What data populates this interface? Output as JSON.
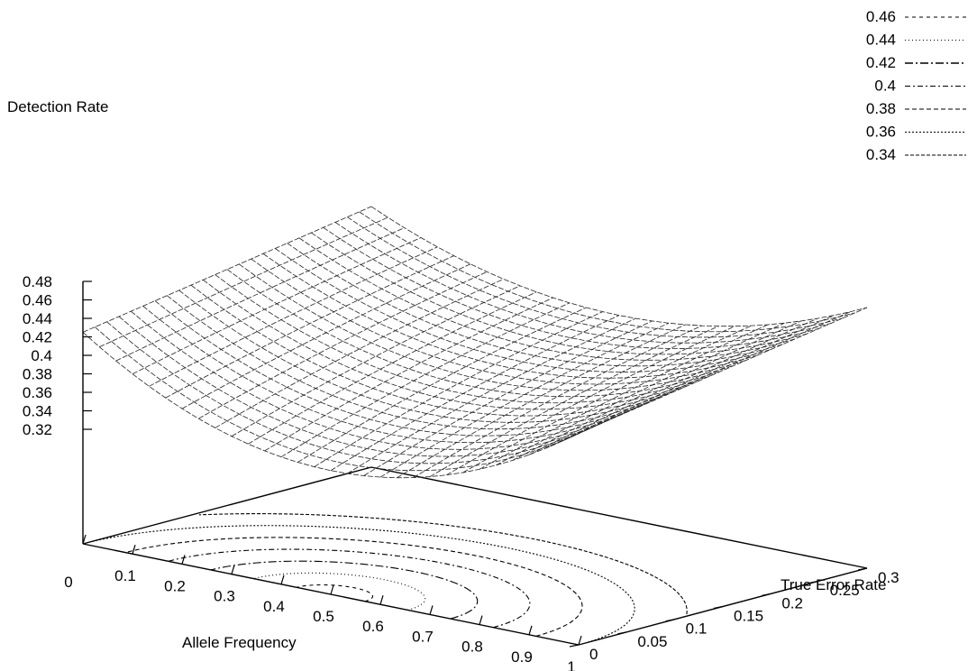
{
  "chart_data": {
    "type": "surface3d",
    "zlabel": "Detection Rate",
    "xlabel": "Allele Frequency",
    "ylabel": "True Error Rate",
    "x_ticks": [
      "0",
      "0.1",
      "0.2",
      "0.3",
      "0.4",
      "0.5",
      "0.6",
      "0.7",
      "0.8",
      "0.9",
      "1"
    ],
    "y_ticks": [
      "0",
      "0.05",
      "0.1",
      "0.15",
      "0.2",
      "0.25",
      "0.3"
    ],
    "z_ticks": [
      "0.48",
      "0.46",
      "0.44",
      "0.42",
      "0.4",
      "0.38",
      "0.36",
      "0.34",
      "0.32"
    ],
    "xlim": [
      0,
      1
    ],
    "ylim": [
      0,
      0.3
    ],
    "zlim": [
      0.32,
      0.48
    ],
    "surface_shape": "minimum near allele frequency 0.5, true error rate 0; rises toward allele frequency 0 and 1 and with increasing true error rate",
    "contour_levels": [
      "0.46",
      "0.44",
      "0.42",
      "0.4",
      "0.38",
      "0.36",
      "0.34"
    ],
    "legend_position": "top-right"
  }
}
